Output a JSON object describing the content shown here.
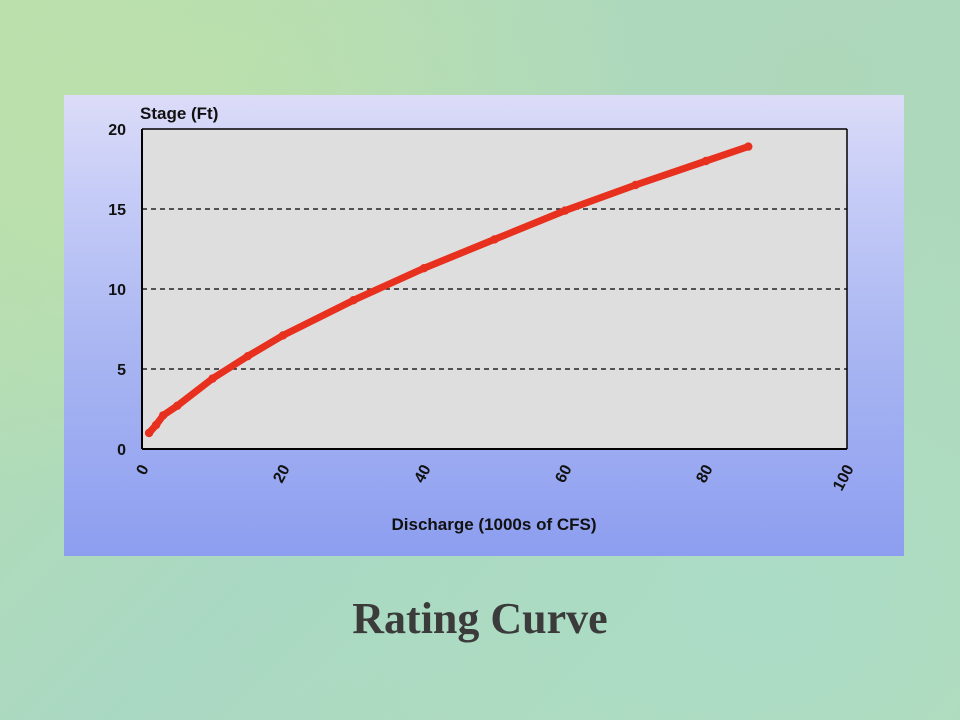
{
  "slide": {
    "title": "Rating Curve"
  },
  "chart_data": {
    "type": "line",
    "ylabel": "Stage (Ft)",
    "xlabel": "Discharge (1000s of CFS)",
    "xlim": [
      0,
      100
    ],
    "ylim": [
      0,
      20
    ],
    "x_ticks": [
      0,
      20,
      40,
      60,
      80,
      100
    ],
    "y_ticks": [
      0,
      5,
      10,
      15,
      20
    ],
    "grid": "horizontal dashed at 5, 10, 15",
    "series": [
      {
        "color": "#e8301e",
        "x": [
          1,
          2,
          3,
          5,
          10,
          15,
          20,
          30,
          40,
          50,
          60,
          70,
          80,
          86
        ],
        "y": [
          1.0,
          1.5,
          2.1,
          2.7,
          4.4,
          5.8,
          7.1,
          9.3,
          11.3,
          13.1,
          14.9,
          16.5,
          18.0,
          18.9
        ]
      }
    ],
    "colors": {
      "plot_background": "#dedede",
      "line": "#e8301e",
      "gridline": "#000000"
    }
  }
}
